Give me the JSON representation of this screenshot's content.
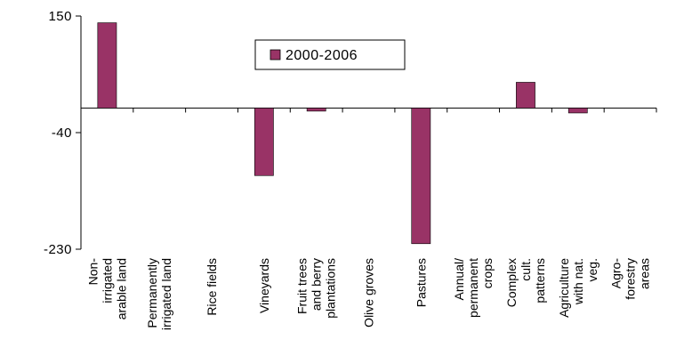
{
  "chart_data": {
    "type": "bar",
    "categories": [
      [
        "Non-",
        "irrigated",
        "arable land"
      ],
      [
        "Permanently",
        "irrigated land"
      ],
      [
        "Rice fields"
      ],
      [
        "Vineyards"
      ],
      [
        "Fruit trees",
        "and berry",
        "plantations"
      ],
      [
        "Olive groves"
      ],
      [
        "Pastures"
      ],
      [
        "Annual/",
        "permanent",
        "crops"
      ],
      [
        "Complex",
        "cult.",
        "patterns"
      ],
      [
        "Agriculture",
        "with nat.",
        "veg."
      ],
      [
        "Agro-",
        "forestry",
        "areas"
      ]
    ],
    "series": [
      {
        "name": "2000-2006",
        "values": [
          139,
          0,
          0,
          -110,
          -5,
          0,
          -221,
          0,
          42,
          -8,
          0
        ]
      }
    ],
    "ylim": [
      -230,
      150
    ],
    "yticks": [
      "150",
      "-40",
      "-230"
    ],
    "ytick_values": [
      150,
      -40,
      -230
    ],
    "grid": false,
    "legend_position": "inside-top-center",
    "colors": {
      "bar": "#993366",
      "axis": "#000000"
    }
  }
}
